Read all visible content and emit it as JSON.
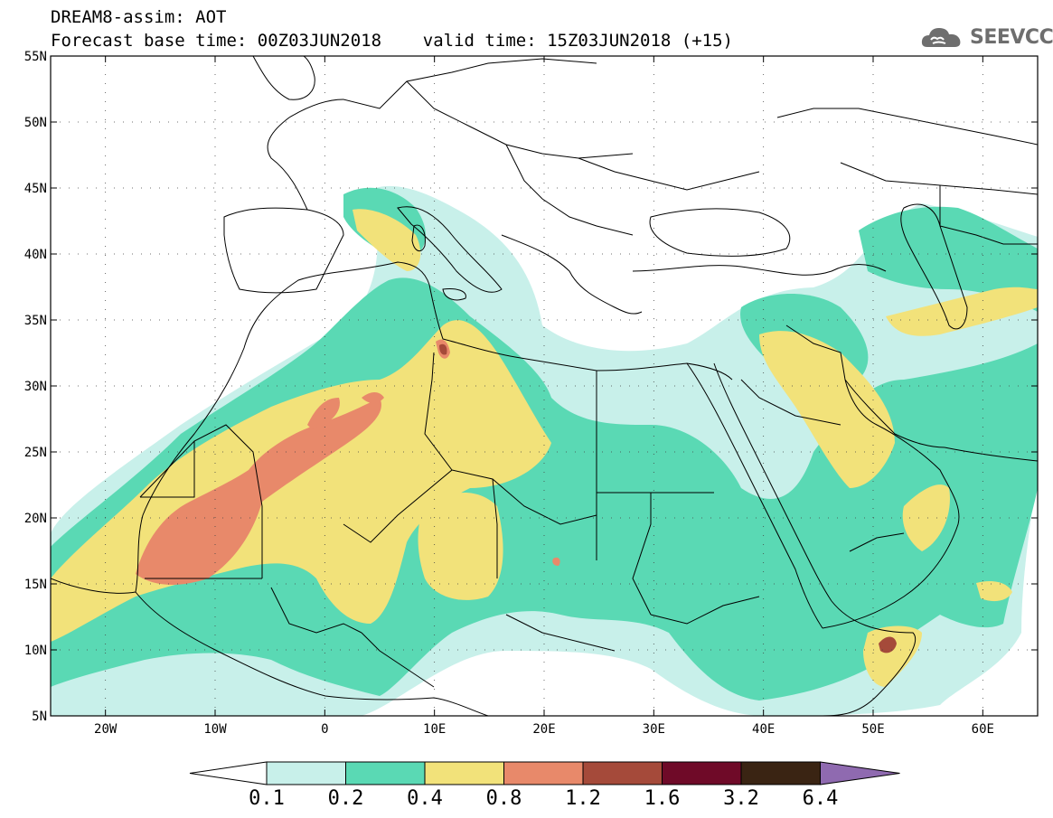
{
  "header": {
    "line1": "DREAM8-assim: AOT",
    "line2": "Forecast base time: 00Z03JUN2018    valid time: 15Z03JUN2018 (+15)"
  },
  "logo": {
    "text": "SEEVCCC",
    "icon": "cloud-icon"
  },
  "map": {
    "lat_range": [
      5,
      55
    ],
    "lon_range": [
      -25,
      65
    ],
    "lat_ticks": [
      {
        "value": 55,
        "label": "55N"
      },
      {
        "value": 50,
        "label": "50N"
      },
      {
        "value": 45,
        "label": "45N"
      },
      {
        "value": 40,
        "label": "40N"
      },
      {
        "value": 35,
        "label": "35N"
      },
      {
        "value": 30,
        "label": "30N"
      },
      {
        "value": 25,
        "label": "25N"
      },
      {
        "value": 20,
        "label": "20N"
      },
      {
        "value": 15,
        "label": "15N"
      },
      {
        "value": 10,
        "label": "10N"
      },
      {
        "value": 5,
        "label": "5N"
      }
    ],
    "lon_ticks": [
      {
        "value": -20,
        "label": "20W"
      },
      {
        "value": -10,
        "label": "10W"
      },
      {
        "value": 0,
        "label": "0"
      },
      {
        "value": 10,
        "label": "10E"
      },
      {
        "value": 20,
        "label": "20E"
      },
      {
        "value": 30,
        "label": "30E"
      },
      {
        "value": 40,
        "label": "40E"
      },
      {
        "value": 50,
        "label": "50E"
      },
      {
        "value": 60,
        "label": "60E"
      }
    ],
    "grid": "dotted"
  },
  "colorbar": {
    "labels": [
      "0.1",
      "0.2",
      "0.4",
      "0.8",
      "1.2",
      "1.6",
      "3.2",
      "6.4"
    ],
    "colors": [
      "#ffffff",
      "#c8f0ea",
      "#5ad9b4",
      "#f2e27a",
      "#e8896a",
      "#a54a3a",
      "#6f0a28",
      "#3a2413",
      "#8f6ab0"
    ]
  }
}
